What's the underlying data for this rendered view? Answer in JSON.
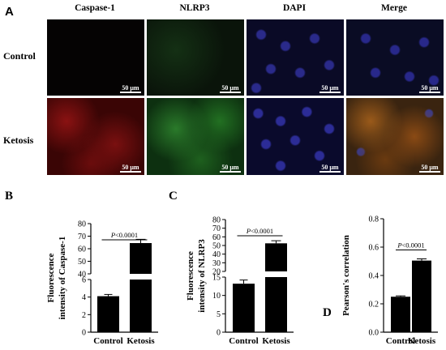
{
  "panel_a": {
    "letter": "A",
    "columns": [
      "Caspase-1",
      "NLRP3",
      "DAPI",
      "Merge"
    ],
    "rows": [
      "Control",
      "Ketosis"
    ],
    "scale_label": "50 μm",
    "tiles": [
      [
        {
          "color": "#050303",
          "glow": "none"
        },
        {
          "color": "#0a140a",
          "glow": "green-faint"
        },
        {
          "color": "#0a0a26",
          "glow": "blue"
        },
        {
          "color": "#0a0c24",
          "glow": "blue"
        }
      ],
      [
        {
          "color": "#4a0606",
          "glow": "red"
        },
        {
          "color": "#0d3a10",
          "glow": "green"
        },
        {
          "color": "#0a0a2c",
          "glow": "blue"
        },
        {
          "color": "#4a2a10",
          "glow": "merge"
        }
      ]
    ]
  },
  "chart_data": [
    {
      "letter": "B",
      "type": "bar",
      "categories": [
        "Control",
        "Ketosis"
      ],
      "values": [
        4.1,
        64.5
      ],
      "errors": [
        0.2,
        3.0
      ],
      "ylabel_lines": [
        "Fluorescence",
        "intensity of Caspase-1"
      ],
      "broken_axis": true,
      "lower_range": [
        0,
        6
      ],
      "upper_range": [
        40,
        80
      ],
      "lower_ticks": [
        "0",
        "2",
        "4",
        "6"
      ],
      "upper_ticks": [
        "40",
        "50",
        "60",
        "70",
        "80"
      ],
      "p_label": "P<0.0001"
    },
    {
      "letter": "C",
      "type": "bar",
      "categories": [
        "Control",
        "Ketosis"
      ],
      "values": [
        13.2,
        52.5
      ],
      "errors": [
        1.0,
        3.0
      ],
      "ylabel_lines": [
        "Fluorescence",
        "intensity of NLRP3"
      ],
      "broken_axis": true,
      "lower_range": [
        0,
        15
      ],
      "upper_range": [
        20,
        80
      ],
      "lower_ticks": [
        "0",
        "5",
        "10",
        "15"
      ],
      "upper_ticks": [
        "20",
        "30",
        "40",
        "50",
        "60",
        "70",
        "80"
      ],
      "p_label": "P<0.0001"
    },
    {
      "letter": "D",
      "type": "bar",
      "categories": [
        "Control",
        "Ketosis"
      ],
      "values": [
        0.25,
        0.505
      ],
      "errors": [
        0.006,
        0.012
      ],
      "ylabel_lines": [
        "Pearson's correlation"
      ],
      "broken_axis": false,
      "ylim": [
        0,
        0.8
      ],
      "ticks": [
        "0.0",
        "0.2",
        "0.4",
        "0.6",
        "0.8"
      ],
      "p_label": "P<0.0001"
    }
  ]
}
